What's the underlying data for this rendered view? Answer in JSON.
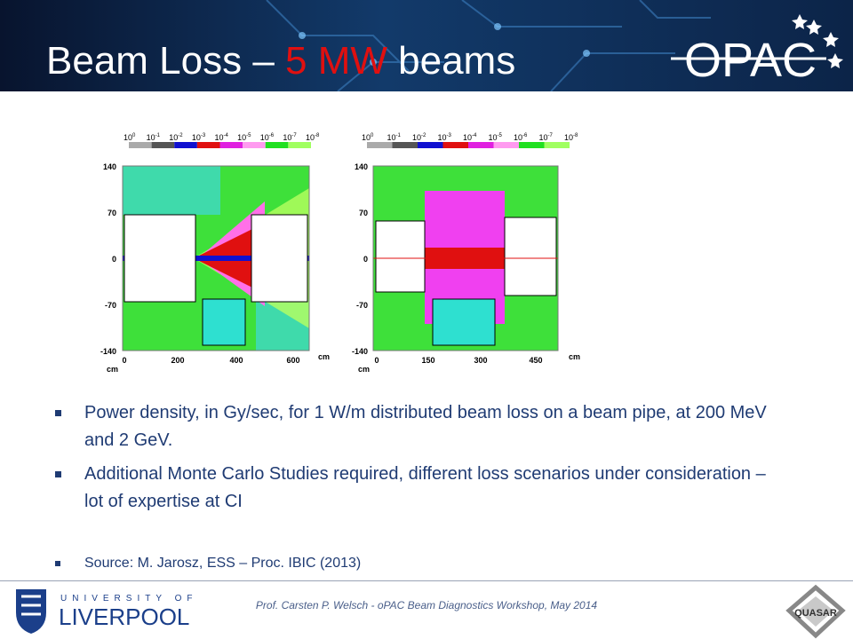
{
  "header": {
    "title_parts": [
      "Beam Loss – ",
      "5 MW",
      " beams"
    ],
    "logo": "OPAC"
  },
  "figures": [
    {
      "colorbar": {
        "base": "10",
        "exponents": [
          "0",
          "-1",
          "-2",
          "-3",
          "-4",
          "-5",
          "-6",
          "-7",
          "-8"
        ]
      },
      "yticks": [
        "140",
        "70",
        "0",
        "-70",
        "-140"
      ],
      "xticks": [
        "0",
        "200",
        "400",
        "600"
      ],
      "unit": "cm"
    },
    {
      "colorbar": {
        "base": "10",
        "exponents": [
          "0",
          "-1",
          "-2",
          "-3",
          "-4",
          "-5",
          "-6",
          "-7",
          "-8"
        ]
      },
      "yticks": [
        "140",
        "70",
        "0",
        "-70",
        "-140"
      ],
      "xticks": [
        "0",
        "150",
        "300",
        "450"
      ],
      "unit": "cm"
    }
  ],
  "bullets": [
    "Power density, in Gy/sec, for 1 W/m distributed beam loss on a beam pipe, at 200 MeV and 2 GeV.",
    "Additional Monte Carlo Studies required, different loss scenarios under consideration – lot of expertise at CI"
  ],
  "source": "Source: M. Jarosz, ESS – Proc. IBIC (2013)",
  "footer": {
    "text": "Prof. Carsten P. Welsch - oPAC Beam Diagnostics Workshop, May 2014",
    "university_top": "UNIVERSITY OF",
    "university_name": "LIVERPOOL",
    "partner": "QUASAR"
  }
}
